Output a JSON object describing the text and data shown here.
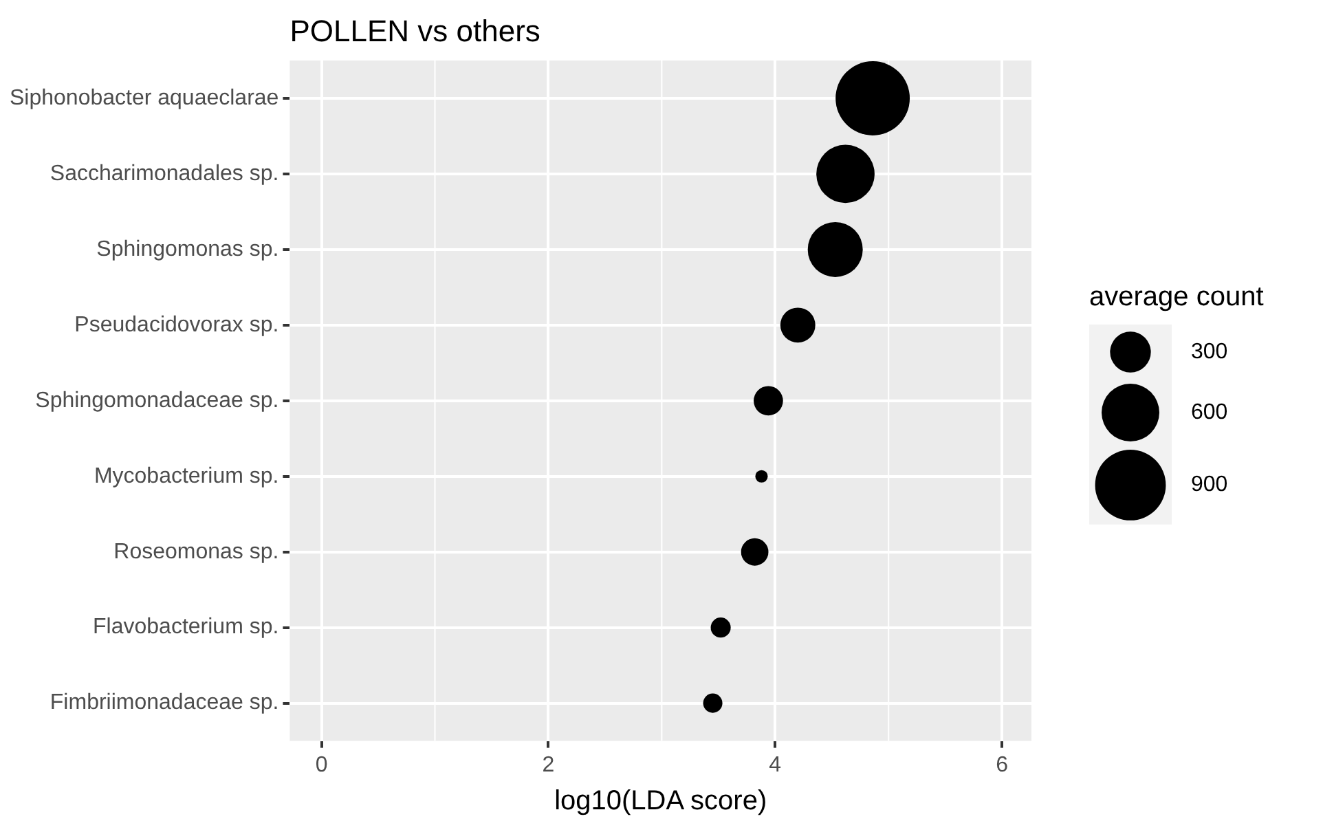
{
  "chart_data": {
    "type": "bubble",
    "title": "POLLEN vs others",
    "xlabel": "log10(LDA score)",
    "orientation": "horizontal",
    "categories": [
      "Siphonobacter aquaeclarae",
      "Saccharimonadales sp.",
      "Sphingomonas sp.",
      "Pseudacidovorax sp.",
      "Sphingomonadaceae sp.",
      "Mycobacterium sp.",
      "Roseomonas sp.",
      "Flavobacterium sp.",
      "Fimbriimonadaceae sp."
    ],
    "values": [
      4.86,
      4.62,
      4.53,
      4.2,
      3.94,
      3.88,
      3.82,
      3.52,
      3.45
    ],
    "sizes": [
      990,
      610,
      545,
      220,
      155,
      28,
      135,
      72,
      67
    ],
    "size_legend": [
      300,
      600,
      900
    ],
    "legend_title": "average count",
    "color": "#000000",
    "xlim": [
      -0.28,
      6.26
    ],
    "xticks": [
      0,
      2,
      4,
      6
    ],
    "grid": true
  }
}
